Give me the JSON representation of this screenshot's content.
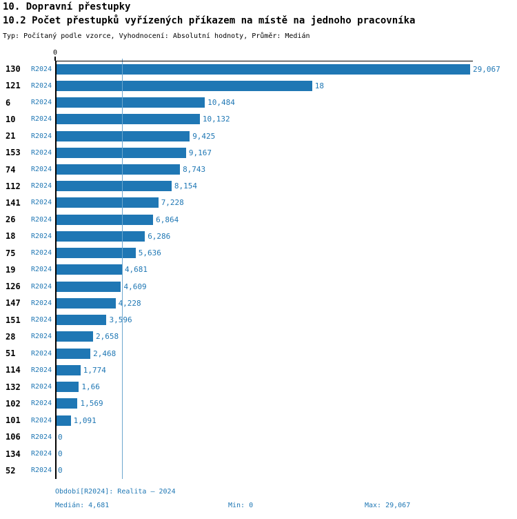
{
  "header": {
    "title": "10. Dopravní přestupky",
    "subtitle": "10.2 Počet přestupků vyřízených příkazem na místě na jednoho pracovníka",
    "meta": "Typ: Počítaný podle vzorce, Vyhodnocení: Absolutní hodnoty, Průměr: Medián"
  },
  "chart_data": {
    "type": "bar",
    "orientation": "horizontal",
    "title": "10.2 Počet přestupků vyřízených příkazem na místě na jednoho pracovníka",
    "xlabel": "",
    "ylabel": "",
    "xlim": [
      0,
      29.067
    ],
    "grid": "median-line-only",
    "legend_position": "none",
    "axis_zero_label": "0",
    "series_name": "R2024",
    "categories": [
      "130",
      "121",
      "6",
      "10",
      "21",
      "153",
      "74",
      "112",
      "141",
      "26",
      "18",
      "75",
      "19",
      "126",
      "147",
      "151",
      "28",
      "51",
      "114",
      "132",
      "102",
      "101",
      "106",
      "134",
      "52"
    ],
    "values": [
      29.067,
      18,
      10.484,
      10.132,
      9.425,
      9.167,
      8.743,
      8.154,
      7.228,
      6.864,
      6.286,
      5.636,
      4.681,
      4.609,
      4.228,
      3.596,
      2.658,
      2.468,
      1.774,
      1.66,
      1.569,
      1.091,
      0,
      0,
      0
    ],
    "value_labels": [
      "29,067",
      "18",
      "10,484",
      "10,132",
      "9,425",
      "9,167",
      "8,743",
      "8,154",
      "7,228",
      "6,864",
      "6,286",
      "5,636",
      "4,681",
      "4,609",
      "4,228",
      "3,596",
      "2,658",
      "2,468",
      "1,774",
      "1,66",
      "1,569",
      "1,091",
      "0",
      "0",
      "0"
    ],
    "median_value": 4.681,
    "bar_color": "#1f77b4",
    "value_label_color": "#1f77b4",
    "series_label_color": "#1f77b4",
    "median_line_color": "#1f77b4"
  },
  "footer": {
    "period": "Období[R2024]: Realita – 2024",
    "median": "Medián: 4,681",
    "min": "Min: 0",
    "max": "Max: 29,067",
    "text_color": "#1f77b4"
  }
}
